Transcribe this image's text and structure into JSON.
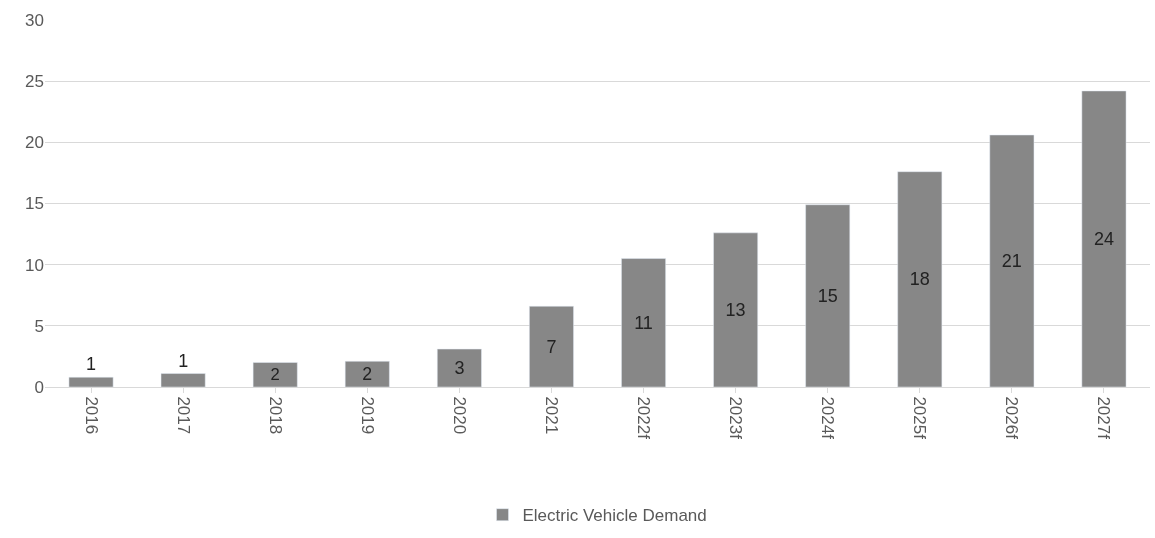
{
  "chart_data": {
    "type": "bar",
    "categories": [
      "2016",
      "2017",
      "2018",
      "2019",
      "2020",
      "2021",
      "2022f",
      "2023f",
      "2024f",
      "2025f",
      "2026f",
      "2027f"
    ],
    "series": [
      {
        "name": "Electric Vehicle Demand",
        "color": "#878787",
        "values": [
          0.8,
          1.1,
          2.0,
          2.1,
          3.1,
          6.6,
          10.5,
          12.6,
          14.9,
          17.6,
          20.6,
          24.2
        ],
        "value_labels": [
          "1",
          "1",
          "2",
          "2",
          "3",
          "7",
          "11",
          "13",
          "15",
          "18",
          "21",
          "24"
        ]
      }
    ],
    "ylim": [
      0,
      30
    ],
    "yticks": [
      0,
      5,
      10,
      15,
      20,
      25,
      30
    ],
    "grid": "y",
    "legend": "bottom"
  }
}
